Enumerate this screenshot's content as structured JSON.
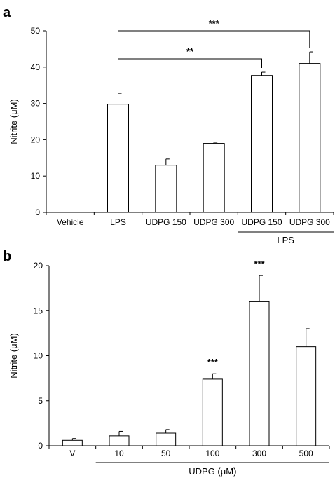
{
  "chart_data": [
    {
      "type": "bar",
      "panel_label": "a",
      "ylabel": "Nitrite (μM)",
      "ylim": [
        0,
        50
      ],
      "yticks": [
        0,
        10,
        20,
        30,
        40,
        50
      ],
      "categories": [
        "Vehicle",
        "LPS",
        "UDPG 150",
        "UDPG 300",
        "UDPG 150",
        "UDPG 300"
      ],
      "values": [
        0,
        29.8,
        13,
        19,
        37.7,
        41
      ],
      "errors": [
        0,
        3,
        1.7,
        0.3,
        0.9,
        3.2
      ],
      "group_label": "LPS",
      "group_range": [
        4,
        5
      ],
      "significance": [
        {
          "from": 1,
          "to": 4,
          "label": "**"
        },
        {
          "from": 1,
          "to": 5,
          "label": "***"
        }
      ]
    },
    {
      "type": "bar",
      "panel_label": "b",
      "ylabel": "Nitrite (μM)",
      "ylim": [
        0,
        20
      ],
      "yticks": [
        0,
        5,
        10,
        15,
        20
      ],
      "categories": [
        "V",
        "10",
        "50",
        "100",
        "300",
        "500"
      ],
      "values": [
        0.6,
        1.1,
        1.4,
        7.4,
        16,
        11
      ],
      "errors": [
        0.2,
        0.5,
        0.4,
        0.6,
        2.9,
        2
      ],
      "group_label": "UDPG (μM)",
      "group_range": [
        1,
        5
      ],
      "bar_annotations": [
        {
          "index": 3,
          "label": "***"
        },
        {
          "index": 4,
          "label": "***"
        }
      ]
    }
  ]
}
